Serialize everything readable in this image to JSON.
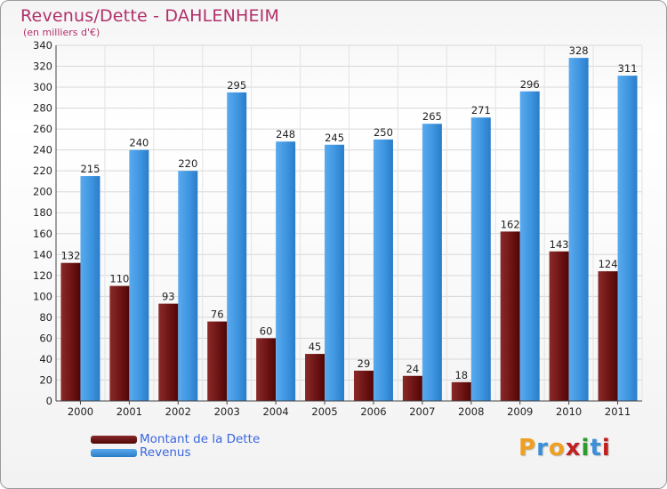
{
  "header": {
    "title": "Revenus/Dette - DAHLENHEIM",
    "subtitle": "(en milliers d'€)"
  },
  "legend": {
    "items": [
      {
        "label": "Montant de la Dette",
        "color": "#6b0a0a"
      },
      {
        "label": "Revenus",
        "color": "#3a8fd8"
      }
    ]
  },
  "logo": {
    "letters": [
      {
        "ch": "P",
        "color": "#f0a020"
      },
      {
        "ch": "r",
        "color": "#3a8fd8"
      },
      {
        "ch": "o",
        "color": "#f0a020"
      },
      {
        "ch": "x",
        "color": "#c02020"
      },
      {
        "ch": "i",
        "color": "#2e9a2e"
      },
      {
        "ch": "t",
        "color": "#3a8fd8"
      },
      {
        "ch": "i",
        "color": "#c02020"
      }
    ]
  },
  "chart_data": {
    "type": "bar",
    "title": "Revenus/Dette - DAHLENHEIM",
    "subtitle": "(en milliers d'€)",
    "categories": [
      "2000",
      "2001",
      "2002",
      "2003",
      "2004",
      "2005",
      "2006",
      "2007",
      "2008",
      "2009",
      "2010",
      "2011"
    ],
    "series": [
      {
        "name": "Montant de la Dette",
        "color": "#6b0a0a",
        "color_light": "#8f2a2a",
        "values": [
          132,
          110,
          93,
          76,
          60,
          45,
          29,
          24,
          18,
          162,
          143,
          124
        ]
      },
      {
        "name": "Revenus",
        "color": "#2f86d6",
        "color_light": "#5aaaee",
        "values": [
          215,
          240,
          220,
          295,
          248,
          245,
          250,
          265,
          271,
          296,
          328,
          311
        ]
      }
    ],
    "ylim": [
      0,
      340
    ],
    "yticks": [
      0,
      20,
      40,
      60,
      80,
      100,
      120,
      140,
      160,
      180,
      200,
      220,
      240,
      260,
      280,
      300,
      320,
      340
    ],
    "grid": true,
    "legend_position": "bottom-left"
  }
}
